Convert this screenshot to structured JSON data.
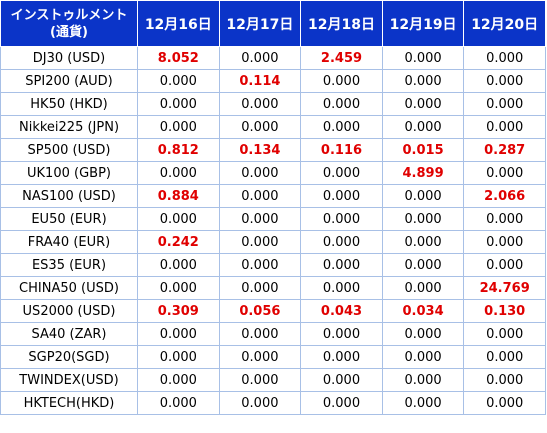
{
  "header": {
    "instrument_line1": "インストゥルメント",
    "instrument_line2": "(通貨)",
    "dates": [
      "12月16日",
      "12月17日",
      "12月18日",
      "12月19日",
      "12月20日"
    ]
  },
  "colors": {
    "header_bg": "#0b34c8",
    "highlight": "#e00000",
    "border": "#a8c0e6"
  },
  "rows": [
    {
      "instrument": "DJ30 (USD)",
      "values": [
        "8.052",
        "0.000",
        "2.459",
        "0.000",
        "0.000"
      ],
      "highlight": [
        true,
        false,
        true,
        false,
        false
      ]
    },
    {
      "instrument": "SPI200 (AUD)",
      "values": [
        "0.000",
        "0.114",
        "0.000",
        "0.000",
        "0.000"
      ],
      "highlight": [
        false,
        true,
        false,
        false,
        false
      ]
    },
    {
      "instrument": "HK50 (HKD)",
      "values": [
        "0.000",
        "0.000",
        "0.000",
        "0.000",
        "0.000"
      ],
      "highlight": [
        false,
        false,
        false,
        false,
        false
      ]
    },
    {
      "instrument": "Nikkei225 (JPN)",
      "values": [
        "0.000",
        "0.000",
        "0.000",
        "0.000",
        "0.000"
      ],
      "highlight": [
        false,
        false,
        false,
        false,
        false
      ]
    },
    {
      "instrument": "SP500 (USD)",
      "values": [
        "0.812",
        "0.134",
        "0.116",
        "0.015",
        "0.287"
      ],
      "highlight": [
        true,
        true,
        true,
        true,
        true
      ]
    },
    {
      "instrument": "UK100 (GBP)",
      "values": [
        "0.000",
        "0.000",
        "0.000",
        "4.899",
        "0.000"
      ],
      "highlight": [
        false,
        false,
        false,
        true,
        false
      ]
    },
    {
      "instrument": "NAS100 (USD)",
      "values": [
        "0.884",
        "0.000",
        "0.000",
        "0.000",
        "2.066"
      ],
      "highlight": [
        true,
        false,
        false,
        false,
        true
      ]
    },
    {
      "instrument": "EU50 (EUR)",
      "values": [
        "0.000",
        "0.000",
        "0.000",
        "0.000",
        "0.000"
      ],
      "highlight": [
        false,
        false,
        false,
        false,
        false
      ]
    },
    {
      "instrument": "FRA40 (EUR)",
      "values": [
        "0.242",
        "0.000",
        "0.000",
        "0.000",
        "0.000"
      ],
      "highlight": [
        true,
        false,
        false,
        false,
        false
      ]
    },
    {
      "instrument": "ES35 (EUR)",
      "values": [
        "0.000",
        "0.000",
        "0.000",
        "0.000",
        "0.000"
      ],
      "highlight": [
        false,
        false,
        false,
        false,
        false
      ]
    },
    {
      "instrument": "CHINA50 (USD)",
      "values": [
        "0.000",
        "0.000",
        "0.000",
        "0.000",
        "24.769"
      ],
      "highlight": [
        false,
        false,
        false,
        false,
        true
      ]
    },
    {
      "instrument": "US2000 (USD)",
      "values": [
        "0.309",
        "0.056",
        "0.043",
        "0.034",
        "0.130"
      ],
      "highlight": [
        true,
        true,
        true,
        true,
        true
      ]
    },
    {
      "instrument": "SA40 (ZAR)",
      "values": [
        "0.000",
        "0.000",
        "0.000",
        "0.000",
        "0.000"
      ],
      "highlight": [
        false,
        false,
        false,
        false,
        false
      ]
    },
    {
      "instrument": "SGP20(SGD)",
      "values": [
        "0.000",
        "0.000",
        "0.000",
        "0.000",
        "0.000"
      ],
      "highlight": [
        false,
        false,
        false,
        false,
        false
      ]
    },
    {
      "instrument": "TWINDEX(USD)",
      "values": [
        "0.000",
        "0.000",
        "0.000",
        "0.000",
        "0.000"
      ],
      "highlight": [
        false,
        false,
        false,
        false,
        false
      ]
    },
    {
      "instrument": "HKTECH(HKD)",
      "values": [
        "0.000",
        "0.000",
        "0.000",
        "0.000",
        "0.000"
      ],
      "highlight": [
        false,
        false,
        false,
        false,
        false
      ]
    }
  ]
}
